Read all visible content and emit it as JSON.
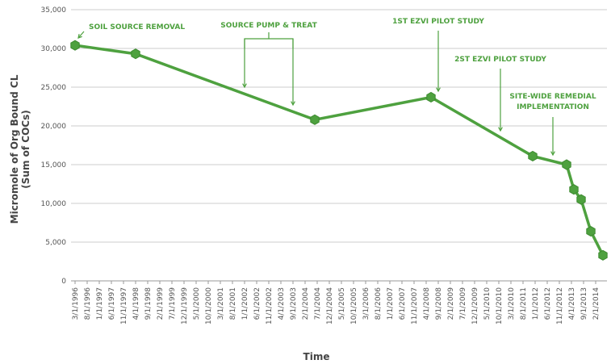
{
  "chart_data": {
    "type": "line",
    "y_label": [
      "Micromole of Org Bound CL",
      "(Sum of COCs)"
    ],
    "x_label": "Time",
    "categories": [
      "3/1/1996",
      "8/1/1996",
      "1/1/1997",
      "6/1/1997",
      "11/1/1997",
      "4/1/1998",
      "9/1/1998",
      "2/1/1999",
      "7/1/1999",
      "12/1/1999",
      "5/1/2000",
      "10/1/2000",
      "3/1/2001",
      "8/1/2001",
      "1/1/2002",
      "6/1/2002",
      "11/1/2002",
      "4/1/2003",
      "9/1/2003",
      "2/1/2004",
      "7/1/2004",
      "12/1/2004",
      "5/1/2005",
      "10/1/2005",
      "3/1/2006",
      "8/1/2006",
      "1/1/2007",
      "6/1/2007",
      "11/1/2007",
      "4/1/2008",
      "9/1/2008",
      "2/1/2009",
      "7/1/2009",
      "12/1/2009",
      "5/1/2010",
      "10/1/2010",
      "3/1/2010",
      "8/1/2011",
      "1/1/2012",
      "6/1/2012",
      "11/1/2012",
      "4/1/2013",
      "9/1/2013",
      "2/1/2014"
    ],
    "x": [
      "3/1/1996",
      "4/1/1998",
      "6/1/2004",
      "6/1/2008",
      "12/1/2011",
      "2/1/2013",
      "5/1/2013",
      "8/1/2013",
      "12/1/2013",
      "5/1/2014"
    ],
    "series": [
      {
        "color": "#4ea13f",
        "values": [
          30400,
          29300,
          20800,
          23700,
          16100,
          15000,
          11800,
          10500,
          6400,
          3300
        ]
      }
    ],
    "ylim": [
      0,
      35000
    ],
    "yticks": [
      0,
      {
        "value": 5000,
        "label": "5,000"
      },
      {
        "value": 10000,
        "label": "10,000"
      },
      {
        "value": 15000,
        "label": "15,000"
      },
      {
        "value": 20000,
        "label": "20,000"
      },
      {
        "value": 25000,
        "label": "25,000"
      },
      {
        "value": 30000,
        "label": "30,000"
      },
      {
        "value": 35000,
        "label": "35,000"
      }
    ],
    "grid": true,
    "annotations": [
      [
        "SOIL SOURCE REMOVAL"
      ],
      [
        "SOURCE PUMP & TREAT"
      ],
      [
        "1ST EZVI PILOT STUDY"
      ],
      [
        "2ST EZVI PILOT STUDY"
      ],
      [
        "SITE-WIDE REMEDIAL",
        "IMPLEMENTATION"
      ]
    ]
  }
}
